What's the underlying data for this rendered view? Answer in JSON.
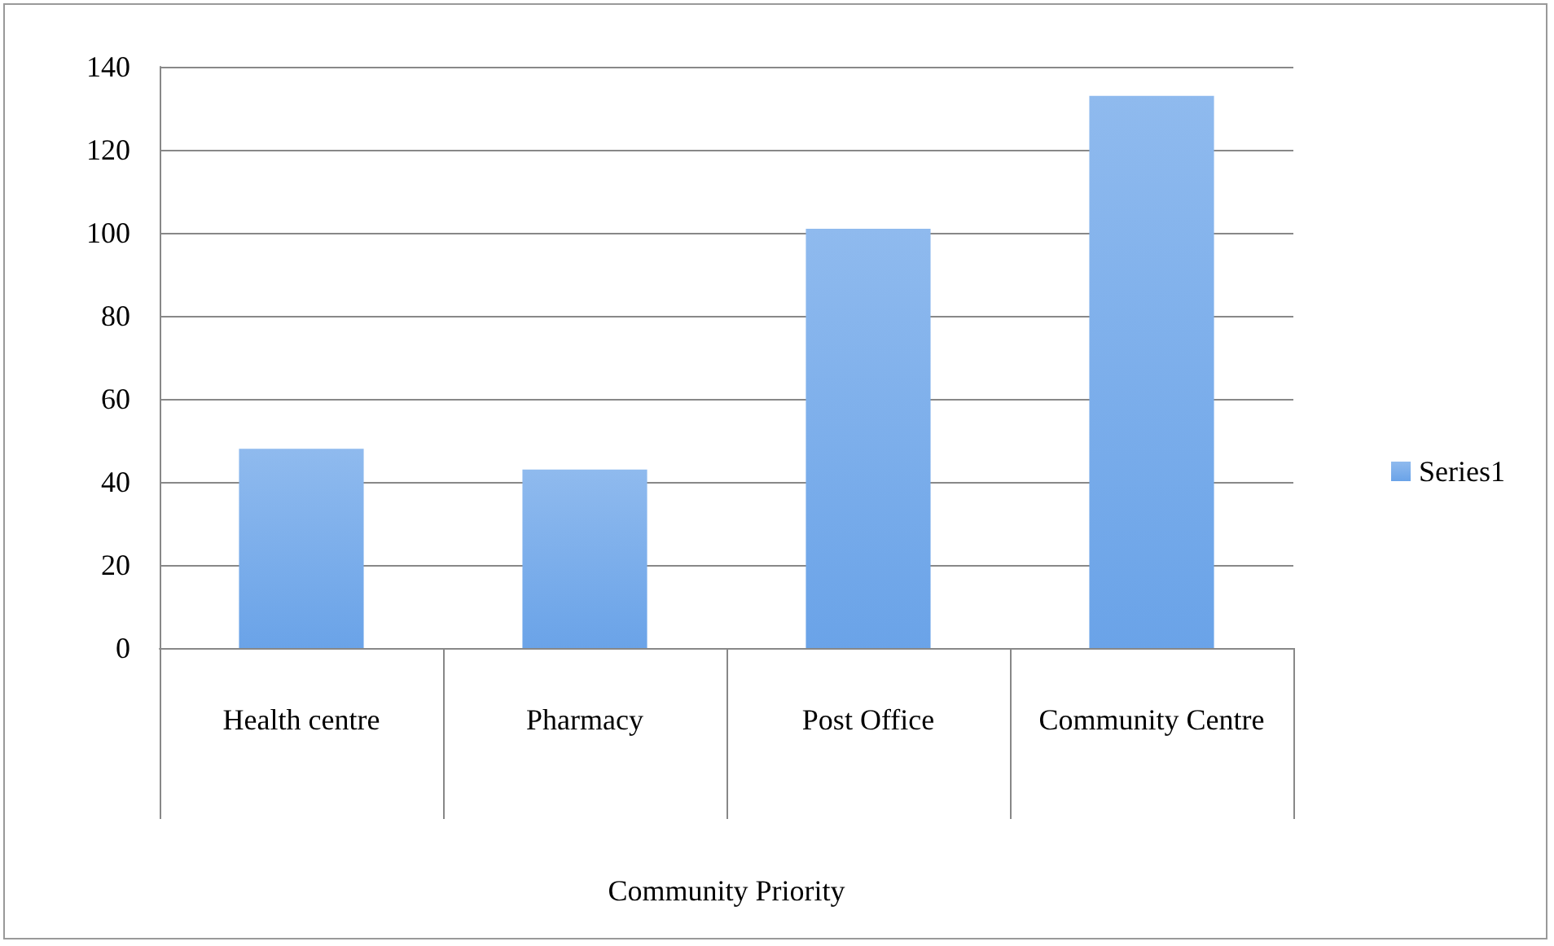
{
  "chart_data": {
    "type": "bar",
    "xlabel": "Community Priority",
    "categories": [
      "Health centre",
      "Pharmacy",
      "Post Office",
      "Community Centre"
    ],
    "series": [
      {
        "name": "Series1",
        "color": "#6aa3e8",
        "values": [
          48,
          43,
          101,
          133
        ]
      }
    ],
    "ylim": [
      0,
      140
    ],
    "yticks": [
      0,
      20,
      40,
      60,
      80,
      100,
      120,
      140
    ],
    "grid": "y",
    "legend": "right"
  }
}
